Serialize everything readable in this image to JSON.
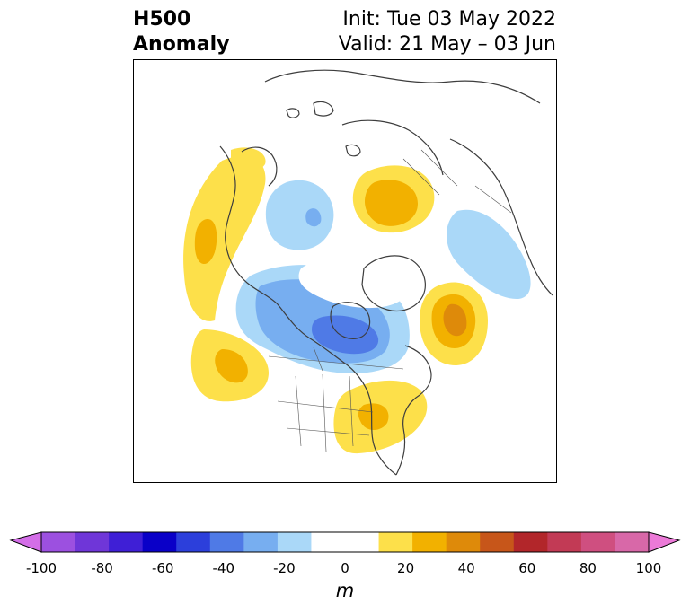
{
  "header": {
    "title_line1": "H500",
    "title_line2": "Anomaly",
    "init_text": "Init: Tue 03 May 2022",
    "valid_text": "Valid: 21 May – 03 Jun"
  },
  "map": {
    "projection": "north-polar-stereographic",
    "region": "North America and Arctic",
    "field": "500 hPa geopotential height anomaly",
    "anomaly_centers": [
      {
        "region": "Northeast Pacific / Gulf of Alaska",
        "sign": "positive",
        "value_range_m": [
          10,
          30
        ]
      },
      {
        "region": "Subtropical Eastern Pacific (off Baja California)",
        "sign": "positive",
        "value_range_m": [
          10,
          30
        ]
      },
      {
        "region": "Eastern United States",
        "sign": "positive",
        "value_range_m": [
          10,
          30
        ]
      },
      {
        "region": "North Atlantic (south of Greenland)",
        "sign": "positive",
        "value_range_m": [
          10,
          40
        ]
      },
      {
        "region": "Scandinavia / Western Russia",
        "sign": "positive",
        "value_range_m": [
          10,
          30
        ]
      },
      {
        "region": "Hudson Bay / Central Canada",
        "sign": "negative",
        "value_range_m": [
          -40,
          -10
        ]
      },
      {
        "region": "Bering Sea / Eastern Siberia",
        "sign": "negative",
        "value_range_m": [
          -30,
          -10
        ]
      },
      {
        "region": "Greenland / Iceland",
        "sign": "negative",
        "value_range_m": [
          -20,
          -10
        ]
      }
    ]
  },
  "colorbar": {
    "unit": "m",
    "ticks": [
      "-100",
      "-80",
      "-60",
      "-40",
      "-20",
      "0",
      "20",
      "40",
      "60",
      "80",
      "100"
    ],
    "extend": "both",
    "colors": [
      "#d46ee8",
      "#9c50e0",
      "#6f36d8",
      "#3f1fd6",
      "#0a00c8",
      "#2c3fdb",
      "#4f7ae6",
      "#77aef0",
      "#aad8f8",
      "#ffffff",
      "#ffffff",
      "#fde04a",
      "#f2b100",
      "#de8a0a",
      "#c7561a",
      "#b2262a",
      "#c23a55",
      "#cf4f80",
      "#d868a8",
      "#ec7ad8"
    ],
    "bounds": [
      -100,
      100
    ]
  }
}
